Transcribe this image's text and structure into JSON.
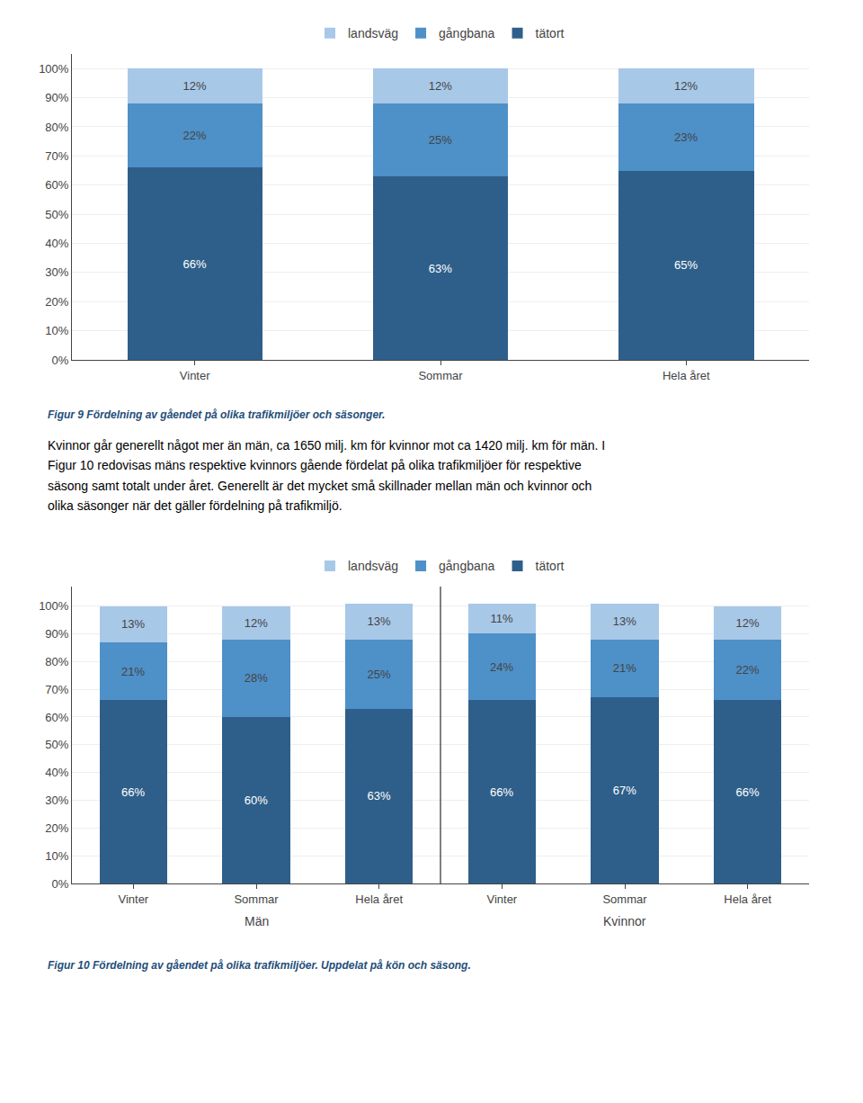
{
  "chart_data": [
    {
      "type": "bar",
      "title": "Figur 9 Fördelning av gåendet på olika trafikmiljöer och säsonger.",
      "categories": [
        "Vinter",
        "Sommar",
        "Hela året"
      ],
      "series": [
        {
          "name": "tätort",
          "color": "#2E5F8A",
          "values": [
            66,
            63,
            65
          ],
          "value_labels": [
            "66%",
            "63%",
            "65%"
          ]
        },
        {
          "name": "gångbana",
          "color": "#4E90C8",
          "values": [
            22,
            25,
            23
          ],
          "value_labels": [
            "22%",
            "25%",
            "23%"
          ]
        },
        {
          "name": "landsväg",
          "color": "#A8C8E8",
          "values": [
            12,
            12,
            12
          ],
          "value_labels": [
            "12%",
            "12%",
            "12%"
          ]
        }
      ],
      "stacked": true,
      "data_labels": true,
      "legend": "top",
      "grid": true,
      "ylim": [
        0,
        105
      ],
      "yticks": [
        {
          "value": 0,
          "label": "0%"
        },
        {
          "value": 10,
          "label": "10%"
        },
        {
          "value": 20,
          "label": "20%"
        },
        {
          "value": 30,
          "label": "30%"
        },
        {
          "value": 40,
          "label": "40%"
        },
        {
          "value": 50,
          "label": "50%"
        },
        {
          "value": 60,
          "label": "60%"
        },
        {
          "value": 70,
          "label": "70%"
        },
        {
          "value": 80,
          "label": "80%"
        },
        {
          "value": 90,
          "label": "90%"
        },
        {
          "value": 100,
          "label": "100%"
        }
      ],
      "annotations": [
        {
          "text": "Kvinnor går generellt något mer än män, ca 1650 milj. km för kvinnor mot ca 1420 milj. km för män. I\nFigur 10 redovisas mäns respektive kvinnors gående fördelat på olika trafikmiljöer för respektive\nsäsong samt totalt under året. Generellt är det mycket små skillnader mellan män och kvinnor och\nolika säsonger när det gäller fördelning på trafikmiljö."
        }
      ]
    },
    {
      "type": "bar",
      "title": "Figur 10 Fördelning av gåendet på olika trafikmiljöer. Uppdelat på kön och säsong.",
      "categories": [
        "Vinter",
        "Sommar",
        "Hela året",
        "Vinter",
        "Sommar",
        "Hela året"
      ],
      "series": [
        {
          "name": "tätort",
          "color": "#2E5F8A",
          "values": [
            66,
            60,
            63,
            66,
            67,
            66
          ],
          "value_labels": [
            "66%",
            "60%",
            "63%",
            "66%",
            "67%",
            "66%"
          ]
        },
        {
          "name": "gångbana",
          "color": "#4E90C8",
          "values": [
            21,
            28,
            25,
            24,
            21,
            22
          ],
          "value_labels": [
            "21%",
            "28%",
            "25%",
            "24%",
            "21%",
            "22%"
          ]
        },
        {
          "name": "landsväg",
          "color": "#A8C8E8",
          "values": [
            13,
            12,
            13,
            11,
            13,
            12
          ],
          "value_labels": [
            "13%",
            "12%",
            "13%",
            "11%",
            "13%",
            "12%"
          ]
        }
      ],
      "stacked": true,
      "data_labels": true,
      "legend": "top",
      "grid": true,
      "ylim": [
        0,
        107
      ],
      "yticks": [
        {
          "value": 0,
          "label": "0%"
        },
        {
          "value": 10,
          "label": "10%"
        },
        {
          "value": 20,
          "label": "20%"
        },
        {
          "value": 30,
          "label": "30%"
        },
        {
          "value": 40,
          "label": "40%"
        },
        {
          "value": 50,
          "label": "50%"
        },
        {
          "value": 60,
          "label": "60%"
        },
        {
          "value": 70,
          "label": "70%"
        },
        {
          "value": 80,
          "label": "80%"
        },
        {
          "value": 90,
          "label": "90%"
        },
        {
          "value": 100,
          "label": "100%"
        }
      ],
      "annotations": [
        {
          "text": "Män",
          "x": 1
        },
        {
          "text": "Kvinnor",
          "x": 4
        }
      ]
    }
  ]
}
